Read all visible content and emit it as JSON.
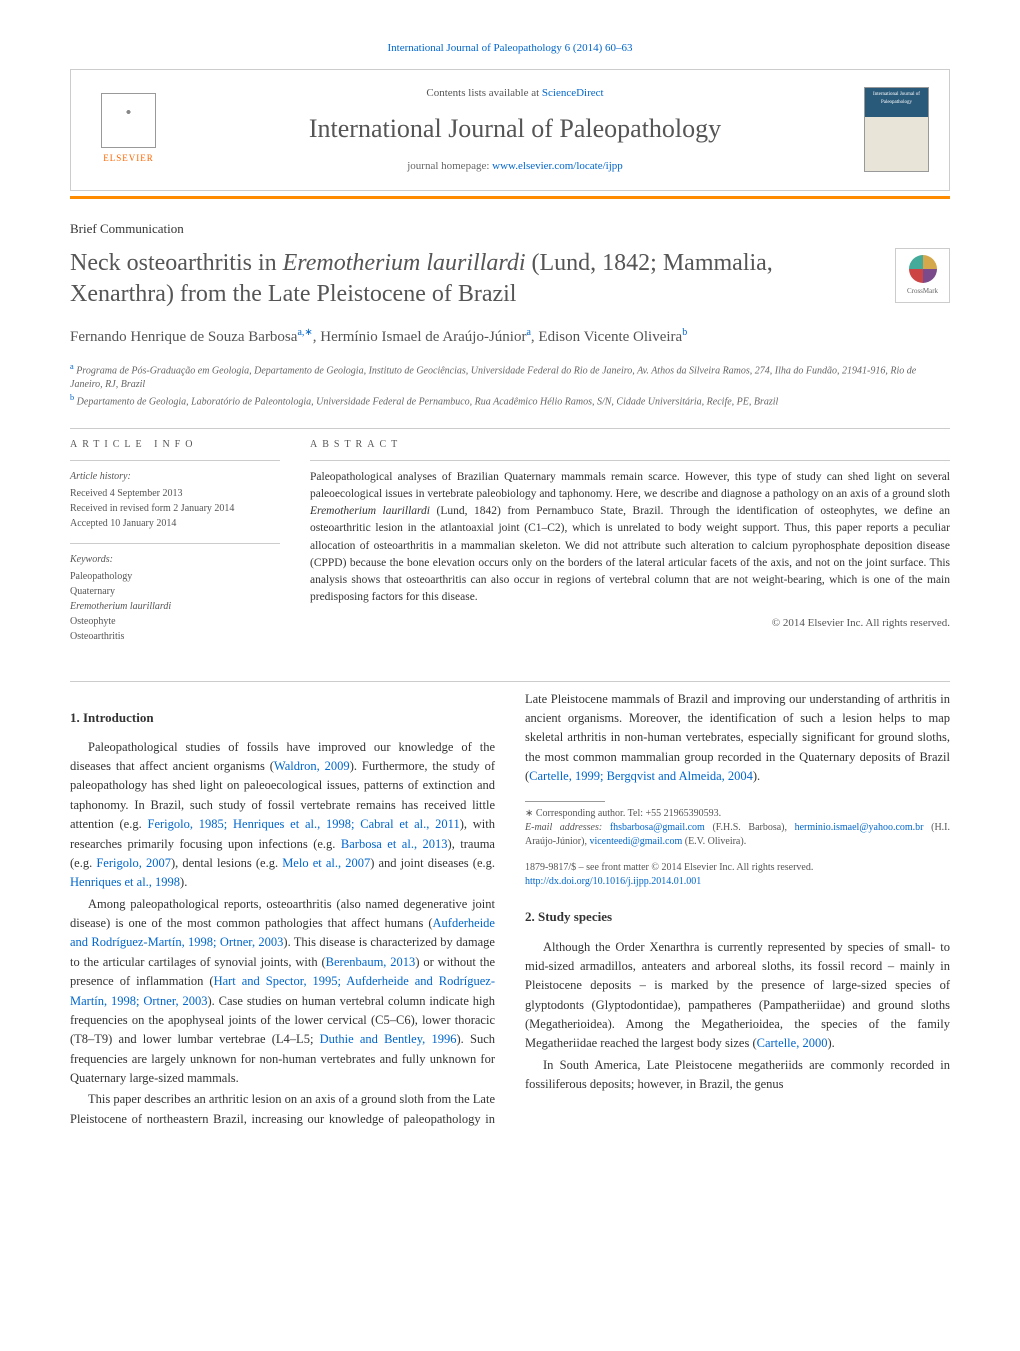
{
  "top_citation": "International Journal of Paleopathology 6 (2014) 60–63",
  "header": {
    "contents_prefix": "Contents lists available at ",
    "contents_link": "ScienceDirect",
    "journal_name": "International Journal of Paleopathology",
    "homepage_prefix": "journal homepage: ",
    "homepage_url": "www.elsevier.com/locate/ijpp",
    "publisher": "ELSEVIER",
    "cover_text": "International Journal of Paleopathology"
  },
  "article_type": "Brief Communication",
  "title_pre": "Neck osteoarthritis in ",
  "title_species": "Eremotherium laurillardi",
  "title_post": " (Lund, 1842; Mammalia, Xenarthra) from the Late Pleistocene of Brazil",
  "crossmark_label": "CrossMark",
  "authors": [
    {
      "name": "Fernando Henrique de Souza Barbosa",
      "sup": "a,∗"
    },
    {
      "name": "Hermínio Ismael de Araújo-Júnior",
      "sup": "a"
    },
    {
      "name": "Edison Vicente Oliveira",
      "sup": "b"
    }
  ],
  "affiliations": [
    {
      "sup": "a",
      "text": "Programa de Pós-Graduação em Geologia, Departamento de Geologia, Instituto de Geociências, Universidade Federal do Rio de Janeiro, Av. Athos da Silveira Ramos, 274, Ilha do Fundão, 21941-916, Rio de Janeiro, RJ, Brazil"
    },
    {
      "sup": "b",
      "text": "Departamento de Geologia, Laboratório de Paleontologia, Universidade Federal de Pernambuco, Rua Acadêmico Hélio Ramos, S/N, Cidade Universitária, Recife, PE, Brazil"
    }
  ],
  "article_info": {
    "heading": "article info",
    "history_label": "Article history:",
    "history": [
      "Received 4 September 2013",
      "Received in revised form 2 January 2014",
      "Accepted 10 January 2014"
    ],
    "keywords_label": "Keywords:",
    "keywords": [
      "Paleopathology",
      "Quaternary",
      "Eremotherium laurillardi",
      "Osteophyte",
      "Osteoarthritis"
    ]
  },
  "abstract": {
    "heading": "abstract",
    "text_1": "Paleopathological analyses of Brazilian Quaternary mammals remain scarce. However, this type of study can shed light on several paleoecological issues in vertebrate paleobiology and taphonomy. Here, we describe and diagnose a pathology on an axis of a ground sloth ",
    "species": "Eremotherium laurillardi",
    "text_2": " (Lund, 1842) from Pernambuco State, Brazil. Through the identification of osteophytes, we define an osteoarthritic lesion in the atlantoaxial joint (C1–C2), which is unrelated to body weight support. Thus, this paper reports a peculiar allocation of osteoarthritis in a mammalian skeleton. We did not attribute such alteration to calcium pyrophosphate deposition disease (CPPD) because the bone elevation occurs only on the borders of the lateral articular facets of the axis, and not on the joint surface. This analysis shows that osteoarthritis can also occur in regions of vertebral column that are not weight-bearing, which is one of the main predisposing factors for this disease.",
    "copyright": "© 2014 Elsevier Inc. All rights reserved."
  },
  "body": {
    "section1_heading": "1. Introduction",
    "p1_a": "Paleopathological studies of fossils have improved our knowledge of the diseases that affect ancient organisms (",
    "p1_l1": "Waldron, 2009",
    "p1_b": "). Furthermore, the study of paleopathology has shed light on paleoecological issues, patterns of extinction and taphonomy. In Brazil, such study of fossil vertebrate remains has received little attention (e.g. ",
    "p1_l2": "Ferigolo, 1985; Henriques et al., 1998; Cabral et al., 2011",
    "p1_c": "), with researches primarily focusing upon infections (e.g. ",
    "p1_l3": "Barbosa et al., 2013",
    "p1_d": "), trauma (e.g. ",
    "p1_l4": "Ferigolo, 2007",
    "p1_e": "), dental lesions (e.g. ",
    "p1_l5": "Melo et al., 2007",
    "p1_f": ") and joint diseases (e.g. ",
    "p1_l6": "Henriques et al., 1998",
    "p1_g": ").",
    "p2_a": "Among paleopathological reports, osteoarthritis (also named degenerative joint disease) is one of the most common pathologies that affect humans (",
    "p2_l1": "Aufderheide and Rodríguez-Martín, 1998; Ortner, 2003",
    "p2_b": "). This disease is characterized by damage to the articular cartilages of synovial joints, with (",
    "p2_l2": "Berenbaum, 2013",
    "p2_c": ") or without the presence of inflammation (",
    "p2_l3": "Hart and Spector, 1995; Aufderheide and Rodríguez-Martín, 1998; Ortner, 2003",
    "p2_d": "). Case studies on human vertebral column indicate high frequencies on the apophyseal joints of the lower cervical (C5–C6), lower thoracic (T8–T9) and lower lumbar vertebrae (L4–L5; ",
    "p2_l4": "Duthie and Bentley, 1996",
    "p2_e": "). Such frequencies are largely unknown for non-human vertebrates and fully unknown for Quaternary large-sized mammals.",
    "p3_a": "This paper describes an arthritic lesion on an axis of a ground sloth from the Late Pleistocene of northeastern Brazil, increasing our knowledge of paleopathology in Late Pleistocene mammals of Brazil and improving our understanding of arthritis in ancient organisms. Moreover, the identification of such a lesion helps to map skeletal arthritis in non-human vertebrates, especially significant for ground sloths, the most common mammalian group recorded in the Quaternary deposits of Brazil (",
    "p3_l1": "Cartelle, 1999; Bergqvist and Almeida, 2004",
    "p3_b": ").",
    "section2_heading": "2. Study species",
    "p4_a": "Although the Order Xenarthra is currently represented by species of small- to mid-sized armadillos, anteaters and arboreal sloths, its fossil record – mainly in Pleistocene deposits – is marked by the presence of large-sized species of glyptodonts (Glyptodontidae), pampatheres (Pampatheriidae) and ground sloths (Megatherioidea). Among the Megatherioidea, the species of the family Megatheriidae reached the largest body sizes (",
    "p4_l1": "Cartelle, 2000",
    "p4_b": ").",
    "p5": "In South America, Late Pleistocene megatheriids are commonly recorded in fossiliferous deposits; however, in Brazil, the genus"
  },
  "footnotes": {
    "corr_label": "∗ Corresponding author. Tel: +55 21965390593.",
    "email_label": "E-mail addresses:",
    "emails": [
      {
        "addr": "fhsbarbosa@gmail.com",
        "who": "(F.H.S. Barbosa)"
      },
      {
        "addr": "herminio.ismael@yahoo.com.br",
        "who": "(H.I. Araújo-Júnior)"
      },
      {
        "addr": "vicenteedi@gmail.com",
        "who": "(E.V. Oliveira)"
      }
    ]
  },
  "footer": {
    "issn": "1879-9817/$ – see front matter © 2014 Elsevier Inc. All rights reserved.",
    "doi": "http://dx.doi.org/10.1016/j.ijpp.2014.01.001"
  },
  "colors": {
    "link": "#0066cc",
    "orange": "#ff8c00",
    "text": "#333333",
    "gray": "#555555",
    "border": "#cccccc"
  }
}
